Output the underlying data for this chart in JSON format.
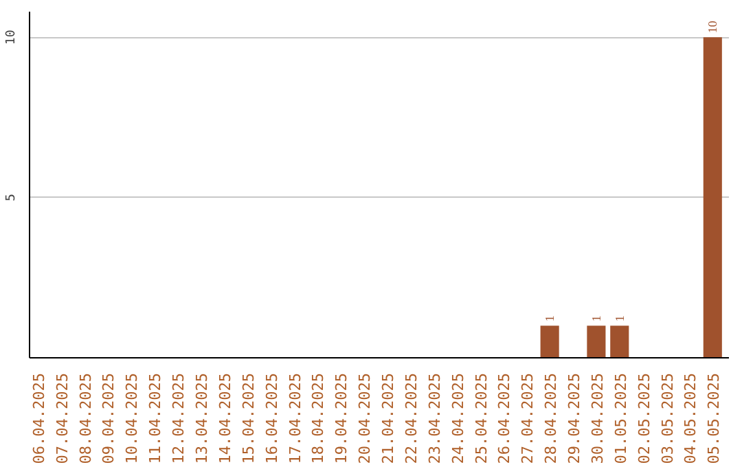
{
  "chart_data": {
    "type": "bar",
    "categories": [
      "06.04.2025",
      "07.04.2025",
      "08.04.2025",
      "09.04.2025",
      "10.04.2025",
      "11.04.2025",
      "12.04.2025",
      "13.04.2025",
      "14.04.2025",
      "15.04.2025",
      "16.04.2025",
      "17.04.2025",
      "18.04.2025",
      "19.04.2025",
      "20.04.2025",
      "21.04.2025",
      "22.04.2025",
      "23.04.2025",
      "24.04.2025",
      "25.04.2025",
      "26.04.2025",
      "27.04.2025",
      "28.04.2025",
      "29.04.2025",
      "30.04.2025",
      "01.05.2025",
      "02.05.2025",
      "03.05.2025",
      "04.05.2025",
      "05.05.2025"
    ],
    "values": [
      0,
      0,
      0,
      0,
      0,
      0,
      0,
      0,
      0,
      0,
      0,
      0,
      0,
      0,
      0,
      0,
      0,
      0,
      0,
      0,
      0,
      0,
      1,
      0,
      1,
      1,
      0,
      0,
      0,
      10
    ],
    "value_labels": [
      null,
      null,
      null,
      null,
      null,
      null,
      null,
      null,
      null,
      null,
      null,
      null,
      null,
      null,
      null,
      null,
      null,
      null,
      null,
      null,
      null,
      null,
      "1",
      null,
      "1",
      "1",
      null,
      null,
      null,
      "10"
    ],
    "color": "#a0522d",
    "ylim": [
      0,
      10.8
    ],
    "yticks": [
      {
        "value": 0,
        "label": null
      },
      5,
      10
    ],
    "grid": "y"
  }
}
